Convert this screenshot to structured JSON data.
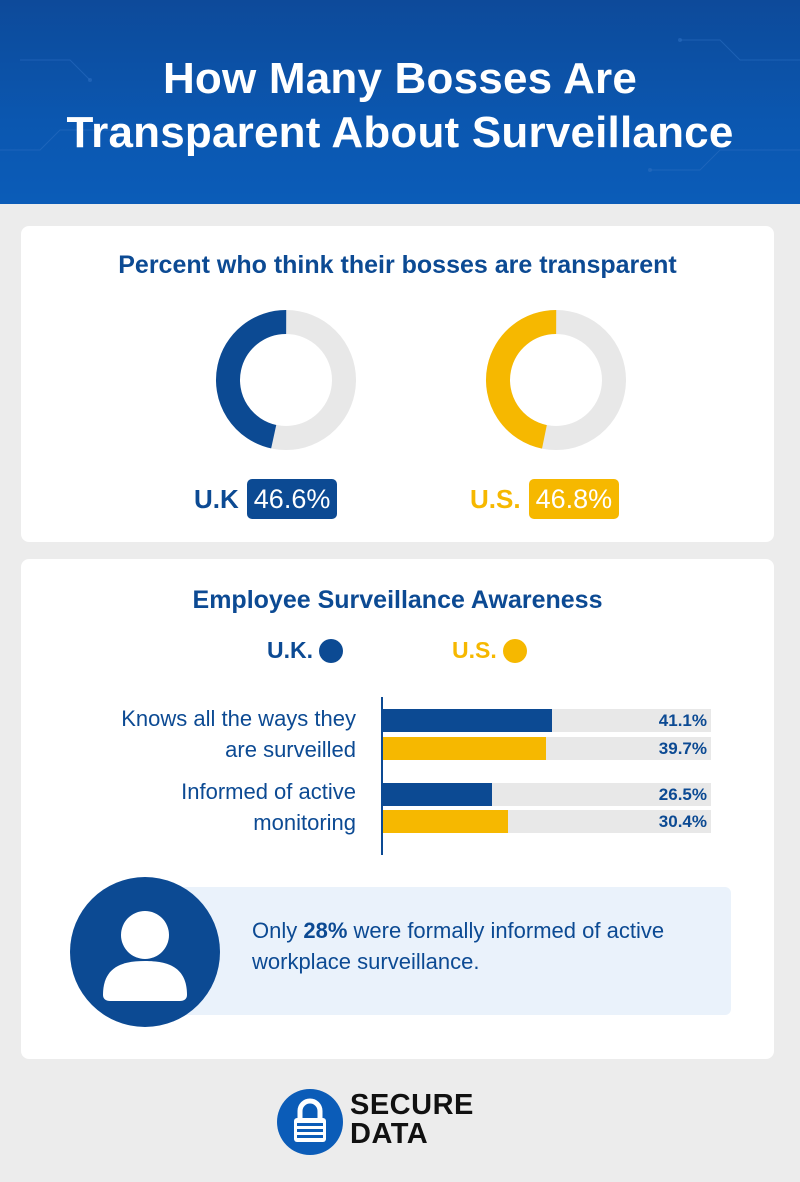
{
  "header": {
    "title_line1": "How Many Bosses Are",
    "title_line2": "Transparent About Surveillance"
  },
  "colors": {
    "uk": "#0c4a93",
    "us": "#f6b800",
    "track": "#e8e8e8",
    "header": "#0b57b0"
  },
  "transparency": {
    "heading": "Percent who think their bosses are transparent",
    "uk": {
      "label": "U.K",
      "value_text": "46.6%"
    },
    "us": {
      "label": "U.S.",
      "value_text": "46.8%"
    }
  },
  "awareness": {
    "heading": "Employee Surveillance Awareness",
    "legend": {
      "uk": "U.K.",
      "us": "U.S."
    },
    "categories": [
      {
        "line1": "Knows all the ways they",
        "line2": "are surveilled",
        "uk_text": "41.1%",
        "us_text": "39.7%"
      },
      {
        "line1": "Informed of active",
        "line2": "monitoring",
        "uk_text": "26.5%",
        "us_text": "30.4%"
      }
    ]
  },
  "note": {
    "prefix": "Only ",
    "highlight": "28%",
    "suffix": " were formally informed of active workplace surveillance.",
    "icon": "person-icon"
  },
  "logo": {
    "line1": "SECURE",
    "line2": "DATA",
    "icon": "padlock-icon"
  },
  "chart_data": [
    {
      "type": "pie",
      "title": "Percent who think their bosses are transparent",
      "categories": [
        "U.K",
        "U.S."
      ],
      "values": [
        46.6,
        46.8
      ],
      "unit": "%"
    },
    {
      "type": "bar",
      "title": "Employee Surveillance Awareness",
      "categories": [
        "Knows all the ways they are surveilled",
        "Informed of active monitoring"
      ],
      "series": [
        {
          "name": "U.K.",
          "values": [
            41.1,
            26.5
          ]
        },
        {
          "name": "U.S.",
          "values": [
            39.7,
            30.4
          ]
        }
      ],
      "orientation": "horizontal",
      "xlim": [
        0,
        80
      ],
      "unit": "%",
      "legend": "top"
    }
  ]
}
